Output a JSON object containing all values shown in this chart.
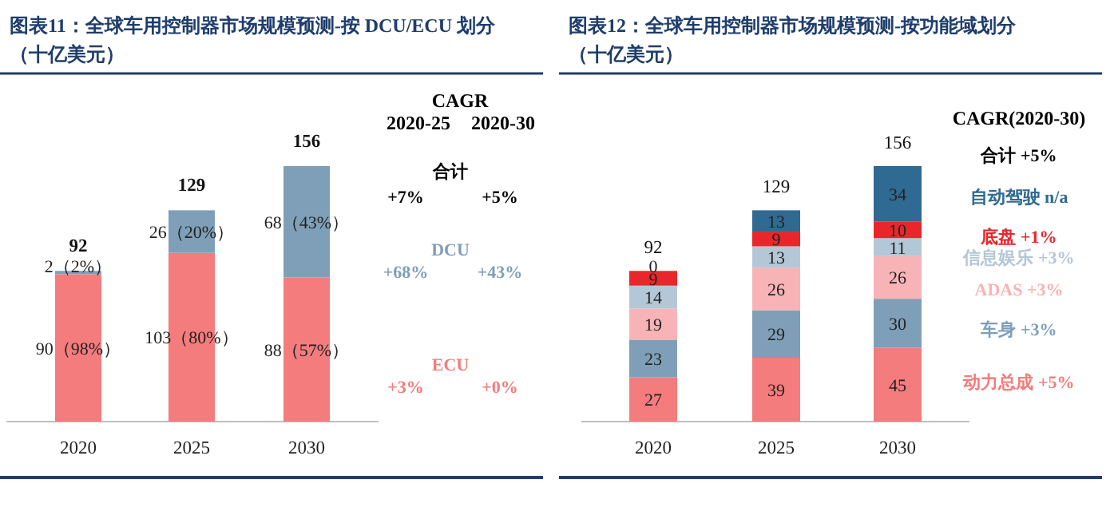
{
  "chart_data": [
    {
      "type": "bar",
      "stacked": true,
      "title": "图表11：全球车用控制器市场规模预测-按 DCU/ECU 划分（十亿美元）",
      "categories": [
        "2020",
        "2025",
        "2030"
      ],
      "series": [
        {
          "name": "ECU",
          "color": "#f47c7c",
          "values": [
            90,
            103,
            88
          ],
          "value_labels": [
            "90（98%）",
            "103（80%）",
            "88（57%）"
          ]
        },
        {
          "name": "DCU",
          "color": "#7f9fb8",
          "values": [
            2,
            26,
            68
          ],
          "value_labels": [
            "2（2%）",
            "26（20%）",
            "68（43%）"
          ]
        }
      ],
      "totals": [
        "92",
        "129",
        "156"
      ],
      "annotations": [
        "CAGR",
        "2020-25",
        "2020-30",
        "合计",
        "+7%",
        "+5%",
        "+68%",
        "+43%",
        "+3%",
        "+0%"
      ]
    },
    {
      "type": "bar",
      "stacked": true,
      "data_labels": true,
      "title": "图表12：全球车用控制器市场规模预测-按功能域划分（十亿美元）",
      "categories": [
        "2020",
        "2025",
        "2030"
      ],
      "series": [
        {
          "name": "动力总成",
          "color": "#f47c7c",
          "values": [
            27,
            39,
            45
          ]
        },
        {
          "name": "车身",
          "color": "#7f9fb8",
          "values": [
            23,
            29,
            30
          ]
        },
        {
          "name": "ADAS",
          "color": "#f7b3b5",
          "values": [
            19,
            26,
            26
          ]
        },
        {
          "name": "信息娱乐",
          "color": "#b4c7d6",
          "values": [
            14,
            13,
            11
          ]
        },
        {
          "name": "底盘",
          "color": "#e8272c",
          "values": [
            9,
            9,
            10
          ]
        },
        {
          "name": "自动驾驶",
          "color": "#2f6a93",
          "values": [
            0,
            13,
            34
          ]
        }
      ],
      "totals": [
        "92",
        "129",
        "156"
      ],
      "annotations": [
        "CAGR(2020-30)",
        "合计 +5%",
        "+5%",
        "+3%",
        "+3%",
        "+3%",
        "+1%",
        "n/a"
      ]
    }
  ]
}
